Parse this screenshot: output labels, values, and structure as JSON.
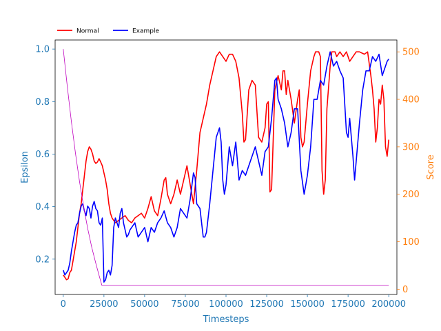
{
  "chart_data": {
    "type": "line",
    "xlabel": "Timesteps",
    "ylabel_left": "Epsilon",
    "ylabel_right": "Score",
    "xlim": [
      -5000,
      205000
    ],
    "ylim_left": [
      0.0655,
      1.0345
    ],
    "ylim_right": [
      -11,
      525
    ],
    "x_ticks": [
      0,
      25000,
      50000,
      75000,
      100000,
      125000,
      150000,
      175000,
      200000
    ],
    "y_left_ticks": [
      0.2,
      0.4,
      0.6,
      0.8,
      1.0
    ],
    "y_right_ticks": [
      0,
      100,
      200,
      300,
      400,
      500
    ],
    "grid": false,
    "legend_placement": "top-left",
    "colors": {
      "left_axis": "#1f77b4",
      "right_axis": "#ff7f0e",
      "epsilon": "#bf00bf",
      "normal": "#ff0000",
      "example": "#0000ff"
    },
    "series": [
      {
        "name": "Normal",
        "axis": "right",
        "points": [
          [
            0,
            30
          ],
          [
            1000,
            25
          ],
          [
            2000,
            20
          ],
          [
            3000,
            22
          ],
          [
            4000,
            35
          ],
          [
            5000,
            40
          ],
          [
            6000,
            60
          ],
          [
            7000,
            80
          ],
          [
            8000,
            100
          ],
          [
            9000,
            130
          ],
          [
            10000,
            160
          ],
          [
            11000,
            180
          ],
          [
            12000,
            210
          ],
          [
            13000,
            240
          ],
          [
            14000,
            270
          ],
          [
            15000,
            290
          ],
          [
            16000,
            300
          ],
          [
            17000,
            295
          ],
          [
            18000,
            285
          ],
          [
            19000,
            270
          ],
          [
            20000,
            265
          ],
          [
            21000,
            268
          ],
          [
            22000,
            275
          ],
          [
            23000,
            268
          ],
          [
            24000,
            260
          ],
          [
            25000,
            245
          ],
          [
            26000,
            230
          ],
          [
            27000,
            210
          ],
          [
            28000,
            180
          ],
          [
            29000,
            160
          ],
          [
            30000,
            150
          ],
          [
            32000,
            140
          ],
          [
            34000,
            145
          ],
          [
            36000,
            150
          ],
          [
            38000,
            155
          ],
          [
            40000,
            145
          ],
          [
            42000,
            140
          ],
          [
            44000,
            150
          ],
          [
            46000,
            155
          ],
          [
            48000,
            160
          ],
          [
            50000,
            150
          ],
          [
            52000,
            170
          ],
          [
            54000,
            195
          ],
          [
            56000,
            165
          ],
          [
            58000,
            155
          ],
          [
            60000,
            190
          ],
          [
            62000,
            230
          ],
          [
            63000,
            235
          ],
          [
            64000,
            200
          ],
          [
            66000,
            180
          ],
          [
            68000,
            200
          ],
          [
            70000,
            230
          ],
          [
            72000,
            200
          ],
          [
            74000,
            230
          ],
          [
            76000,
            260
          ],
          [
            78000,
            220
          ],
          [
            80000,
            180
          ],
          [
            82000,
            250
          ],
          [
            84000,
            330
          ],
          [
            86000,
            360
          ],
          [
            88000,
            390
          ],
          [
            90000,
            430
          ],
          [
            92000,
            460
          ],
          [
            94000,
            490
          ],
          [
            96000,
            500
          ],
          [
            98000,
            490
          ],
          [
            100000,
            480
          ],
          [
            102000,
            495
          ],
          [
            104000,
            495
          ],
          [
            106000,
            480
          ],
          [
            108000,
            445
          ],
          [
            110000,
            370
          ],
          [
            111000,
            310
          ],
          [
            112000,
            315
          ],
          [
            114000,
            420
          ],
          [
            116000,
            440
          ],
          [
            118000,
            430
          ],
          [
            120000,
            320
          ],
          [
            122000,
            310
          ],
          [
            124000,
            340
          ],
          [
            125000,
            390
          ],
          [
            126000,
            395
          ],
          [
            127000,
            205
          ],
          [
            128000,
            210
          ],
          [
            130000,
            420
          ],
          [
            132000,
            450
          ],
          [
            134000,
            420
          ],
          [
            135000,
            460
          ],
          [
            136000,
            460
          ],
          [
            137000,
            410
          ],
          [
            138000,
            440
          ],
          [
            140000,
            400
          ],
          [
            142000,
            350
          ],
          [
            144000,
            400
          ],
          [
            145000,
            420
          ],
          [
            146000,
            320
          ],
          [
            147000,
            300
          ],
          [
            148000,
            310
          ],
          [
            150000,
            390
          ],
          [
            152000,
            460
          ],
          [
            154000,
            490
          ],
          [
            155000,
            500
          ],
          [
            157000,
            500
          ],
          [
            158000,
            490
          ],
          [
            159000,
            250
          ],
          [
            160000,
            200
          ],
          [
            161000,
            230
          ],
          [
            162000,
            380
          ],
          [
            164000,
            470
          ],
          [
            165000,
            500
          ],
          [
            167000,
            500
          ],
          [
            168000,
            490
          ],
          [
            170000,
            500
          ],
          [
            172000,
            490
          ],
          [
            174000,
            500
          ],
          [
            176000,
            480
          ],
          [
            178000,
            490
          ],
          [
            180000,
            500
          ],
          [
            182000,
            500
          ],
          [
            185000,
            495
          ],
          [
            187000,
            500
          ],
          [
            189000,
            450
          ],
          [
            190000,
            420
          ],
          [
            191000,
            380
          ],
          [
            192000,
            310
          ],
          [
            193000,
            340
          ],
          [
            194000,
            400
          ],
          [
            195000,
            390
          ],
          [
            196000,
            430
          ],
          [
            197000,
            400
          ],
          [
            198000,
            300
          ],
          [
            199000,
            280
          ],
          [
            200000,
            315
          ]
        ]
      },
      {
        "name": "Example",
        "axis": "right",
        "points": [
          [
            0,
            40
          ],
          [
            1000,
            30
          ],
          [
            2000,
            35
          ],
          [
            3000,
            40
          ],
          [
            4000,
            55
          ],
          [
            5000,
            80
          ],
          [
            6000,
            100
          ],
          [
            7000,
            120
          ],
          [
            8000,
            135
          ],
          [
            9000,
            140
          ],
          [
            10000,
            160
          ],
          [
            11000,
            175
          ],
          [
            12000,
            180
          ],
          [
            13000,
            165
          ],
          [
            14000,
            155
          ],
          [
            15000,
            175
          ],
          [
            16000,
            170
          ],
          [
            17000,
            150
          ],
          [
            18000,
            175
          ],
          [
            19000,
            185
          ],
          [
            20000,
            170
          ],
          [
            21000,
            165
          ],
          [
            22000,
            140
          ],
          [
            23000,
            135
          ],
          [
            24000,
            150
          ],
          [
            25000,
            15
          ],
          [
            26000,
            20
          ],
          [
            27000,
            35
          ],
          [
            28000,
            40
          ],
          [
            29000,
            30
          ],
          [
            30000,
            50
          ],
          [
            31000,
            130
          ],
          [
            32000,
            150
          ],
          [
            33000,
            140
          ],
          [
            34000,
            130
          ],
          [
            35000,
            160
          ],
          [
            36000,
            170
          ],
          [
            37000,
            140
          ],
          [
            38000,
            125
          ],
          [
            39000,
            110
          ],
          [
            40000,
            115
          ],
          [
            41000,
            125
          ],
          [
            42000,
            130
          ],
          [
            44000,
            140
          ],
          [
            46000,
            110
          ],
          [
            48000,
            120
          ],
          [
            50000,
            130
          ],
          [
            52000,
            100
          ],
          [
            54000,
            130
          ],
          [
            56000,
            120
          ],
          [
            58000,
            140
          ],
          [
            60000,
            150
          ],
          [
            62000,
            165
          ],
          [
            64000,
            140
          ],
          [
            66000,
            130
          ],
          [
            68000,
            110
          ],
          [
            70000,
            130
          ],
          [
            72000,
            170
          ],
          [
            74000,
            160
          ],
          [
            76000,
            150
          ],
          [
            78000,
            190
          ],
          [
            80000,
            245
          ],
          [
            81000,
            235
          ],
          [
            82000,
            180
          ],
          [
            84000,
            170
          ],
          [
            86000,
            110
          ],
          [
            87000,
            110
          ],
          [
            88000,
            120
          ],
          [
            90000,
            180
          ],
          [
            92000,
            250
          ],
          [
            94000,
            320
          ],
          [
            95000,
            330
          ],
          [
            96000,
            340
          ],
          [
            97000,
            310
          ],
          [
            98000,
            230
          ],
          [
            99000,
            200
          ],
          [
            100000,
            220
          ],
          [
            102000,
            300
          ],
          [
            103000,
            280
          ],
          [
            104000,
            260
          ],
          [
            106000,
            310
          ],
          [
            108000,
            230
          ],
          [
            110000,
            250
          ],
          [
            112000,
            240
          ],
          [
            114000,
            260
          ],
          [
            116000,
            280
          ],
          [
            118000,
            300
          ],
          [
            120000,
            270
          ],
          [
            122000,
            240
          ],
          [
            124000,
            290
          ],
          [
            126000,
            300
          ],
          [
            128000,
            360
          ],
          [
            130000,
            440
          ],
          [
            131000,
            445
          ],
          [
            132000,
            400
          ],
          [
            134000,
            380
          ],
          [
            136000,
            350
          ],
          [
            138000,
            300
          ],
          [
            140000,
            330
          ],
          [
            142000,
            380
          ],
          [
            144000,
            380
          ],
          [
            146000,
            250
          ],
          [
            148000,
            200
          ],
          [
            150000,
            240
          ],
          [
            152000,
            300
          ],
          [
            154000,
            400
          ],
          [
            156000,
            400
          ],
          [
            158000,
            440
          ],
          [
            160000,
            430
          ],
          [
            162000,
            470
          ],
          [
            164000,
            500
          ],
          [
            166000,
            470
          ],
          [
            168000,
            480
          ],
          [
            170000,
            460
          ],
          [
            172000,
            445
          ],
          [
            174000,
            330
          ],
          [
            175000,
            320
          ],
          [
            176000,
            360
          ],
          [
            178000,
            280
          ],
          [
            179000,
            230
          ],
          [
            180000,
            270
          ],
          [
            182000,
            350
          ],
          [
            184000,
            420
          ],
          [
            186000,
            460
          ],
          [
            188000,
            460
          ],
          [
            190000,
            490
          ],
          [
            192000,
            480
          ],
          [
            194000,
            495
          ],
          [
            196000,
            450
          ],
          [
            197000,
            460
          ],
          [
            198000,
            470
          ],
          [
            199000,
            480
          ],
          [
            200000,
            485
          ]
        ]
      },
      {
        "axis": "left",
        "points": [
          [
            0,
            1.0
          ],
          [
            2500,
            0.856
          ],
          [
            5000,
            0.723
          ],
          [
            7500,
            0.603
          ],
          [
            10000,
            0.495
          ],
          [
            12500,
            0.4
          ],
          [
            15000,
            0.317
          ],
          [
            17500,
            0.245
          ],
          [
            20000,
            0.184
          ],
          [
            22000,
            0.138
          ],
          [
            23750,
            0.1
          ],
          [
            24000,
            0.1
          ],
          [
            200000,
            0.1
          ]
        ]
      }
    ],
    "legend": [
      {
        "label": "Normal",
        "color": "#ff0000"
      },
      {
        "label": "Example",
        "color": "#0000ff"
      }
    ]
  }
}
